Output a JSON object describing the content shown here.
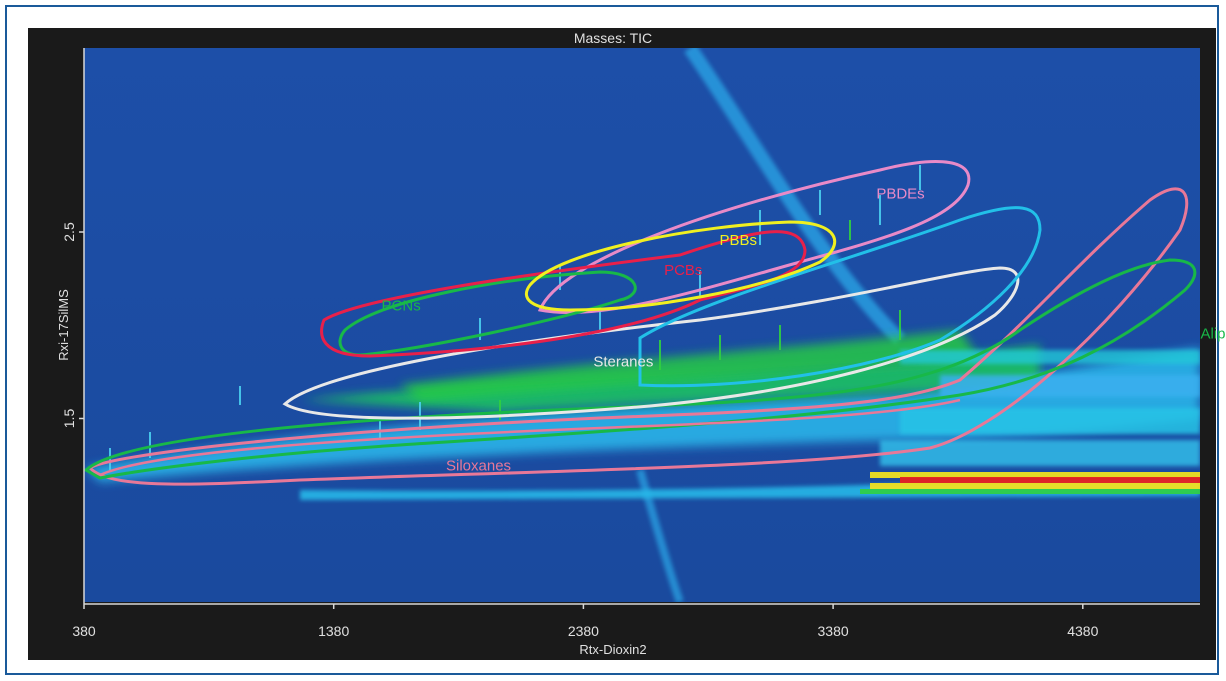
{
  "chart_data": {
    "type": "heatmap",
    "title": "Masses: TIC",
    "xlabel": "Rtx-Dioxin2",
    "ylabel": "Rxi-17SilMS",
    "xlim": [
      380,
      5200
    ],
    "ylim": [
      0.5,
      3.4
    ],
    "x_ticks": [
      "380",
      "1380",
      "2380",
      "3380",
      "4380"
    ],
    "y_ticks": [
      "1.5",
      "2.5"
    ],
    "grid": false,
    "regions": [
      {
        "name": "PBDEs",
        "color": "#e88ac8",
        "label_x": 3650,
        "label_y": 2.68
      },
      {
        "name": "PBBs",
        "color": "#f0f020",
        "label_x": 3000,
        "label_y": 2.43
      },
      {
        "name": "PCBs",
        "color": "#e8204a",
        "label_x": 2780,
        "label_y": 2.27
      },
      {
        "name": "PCNs",
        "color": "#18b848",
        "label_x": 1650,
        "label_y": 2.08
      },
      {
        "name": "Steranes",
        "color": "#e8e8e8",
        "label_x": 2540,
        "label_y": 1.78
      },
      {
        "name": "Aliphatics",
        "color": "#18b848",
        "label_x": 4980,
        "label_y": 1.93
      },
      {
        "name": "Siloxanes",
        "color": "#e87898",
        "label_x": 1960,
        "label_y": 1.22
      }
    ]
  }
}
